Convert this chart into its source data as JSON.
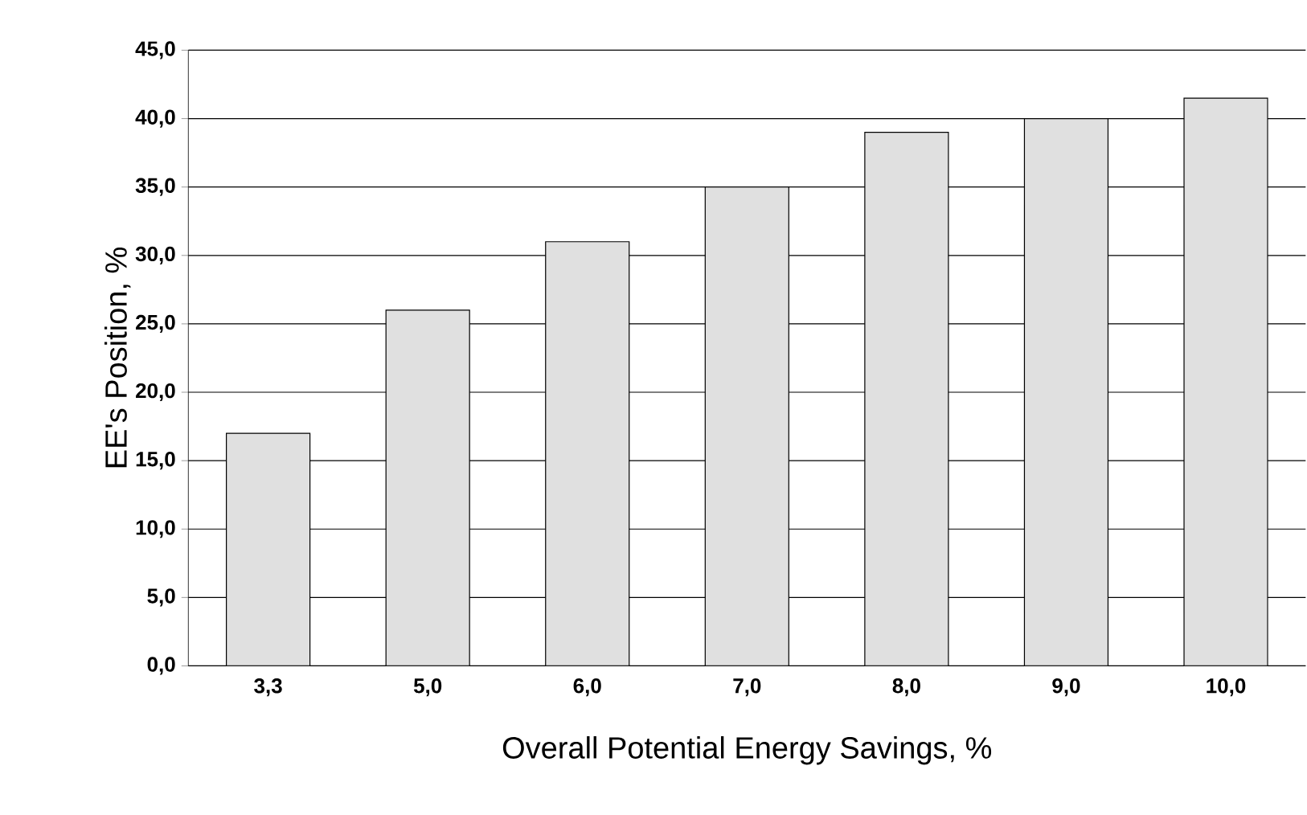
{
  "chart_data": {
    "type": "bar",
    "xlabel": "Overall Potential Energy Savings, %",
    "ylabel": "EE's Position, %",
    "categories": [
      "3,3",
      "5,0",
      "6,0",
      "7,0",
      "8,0",
      "9,0",
      "10,0"
    ],
    "values": [
      17,
      26,
      31,
      35,
      39,
      40,
      41.5
    ],
    "color": "#e0e0e0",
    "ylim": [
      0,
      45
    ],
    "yticks": [
      {
        "value": 0,
        "label": "0,0"
      },
      {
        "value": 5,
        "label": "5,0"
      },
      {
        "value": 10,
        "label": "10,0"
      },
      {
        "value": 15,
        "label": "15,0"
      },
      {
        "value": 20,
        "label": "20,0"
      },
      {
        "value": 25,
        "label": "25,0"
      },
      {
        "value": 30,
        "label": "30,0"
      },
      {
        "value": 35,
        "label": "35,0"
      },
      {
        "value": 40,
        "label": "40,0"
      },
      {
        "value": 45,
        "label": "45,0"
      }
    ],
    "grid": "y"
  }
}
